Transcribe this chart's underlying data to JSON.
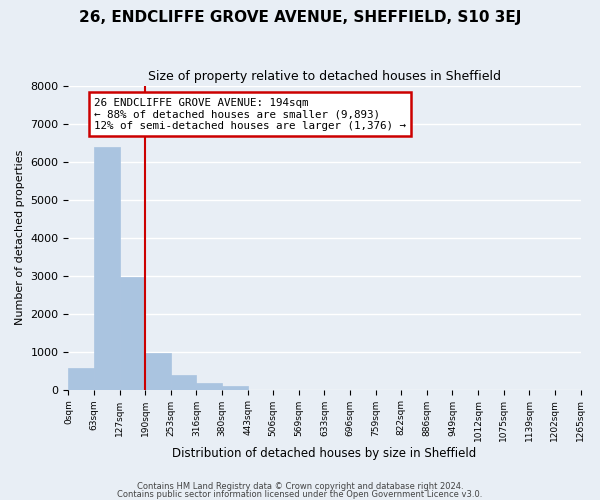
{
  "title": "26, ENDCLIFFE GROVE AVENUE, SHEFFIELD, S10 3EJ",
  "subtitle": "Size of property relative to detached houses in Sheffield",
  "xlabel": "Distribution of detached houses by size in Sheffield",
  "ylabel": "Number of detached properties",
  "bin_labels": [
    "0sqm",
    "63sqm",
    "127sqm",
    "190sqm",
    "253sqm",
    "316sqm",
    "380sqm",
    "443sqm",
    "506sqm",
    "569sqm",
    "633sqm",
    "696sqm",
    "759sqm",
    "822sqm",
    "886sqm",
    "949sqm",
    "1012sqm",
    "1075sqm",
    "1139sqm",
    "1202sqm",
    "1265sqm"
  ],
  "bar_heights": [
    560,
    6380,
    2970,
    960,
    390,
    180,
    100,
    0,
    0,
    0,
    0,
    0,
    0,
    0,
    0,
    0,
    0,
    0,
    0,
    0
  ],
  "bar_color": "#aac4e0",
  "bar_edge_color": "#aac4e0",
  "vline_x": 3.0,
  "vline_color": "#cc0000",
  "annotation_line1": "26 ENDCLIFFE GROVE AVENUE: 194sqm",
  "annotation_line2": "← 88% of detached houses are smaller (9,893)",
  "annotation_line3": "12% of semi-detached houses are larger (1,376) →",
  "annotation_box_color": "#cc0000",
  "ylim": [
    0,
    8000
  ],
  "yticks": [
    0,
    1000,
    2000,
    3000,
    4000,
    5000,
    6000,
    7000,
    8000
  ],
  "footer_line1": "Contains HM Land Registry data © Crown copyright and database right 2024.",
  "footer_line2": "Contains public sector information licensed under the Open Government Licence v3.0.",
  "bg_color": "#e8eef5",
  "plot_bg_color": "#e8eef5",
  "grid_color": "#ffffff"
}
